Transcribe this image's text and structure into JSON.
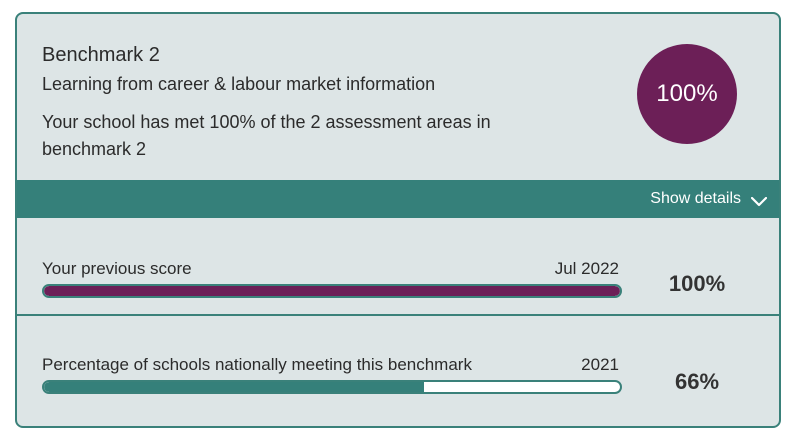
{
  "benchmark": {
    "title": "Benchmark 2",
    "subtitle": "Learning from career & labour market information",
    "summary": "Your school has met 100% of the 2 assessment areas in benchmark 2",
    "score_label": "100%",
    "score_color": "#6c1f57"
  },
  "details_toggle": {
    "label": "Show details",
    "icon": "chevron-down-icon"
  },
  "previous_score": {
    "label": "Your previous score",
    "date": "Jul 2022",
    "value_label": "100%",
    "fill_fraction": 1.0,
    "fill_color": "#6c1f57"
  },
  "national": {
    "label": "Percentage of schools nationally meeting this benchmark",
    "date": "2021",
    "value_label": "66%",
    "fill_fraction": 0.66,
    "fill_color": "#35807a"
  },
  "colors": {
    "accent": "#35807a",
    "card_background": "#dde5e6"
  }
}
